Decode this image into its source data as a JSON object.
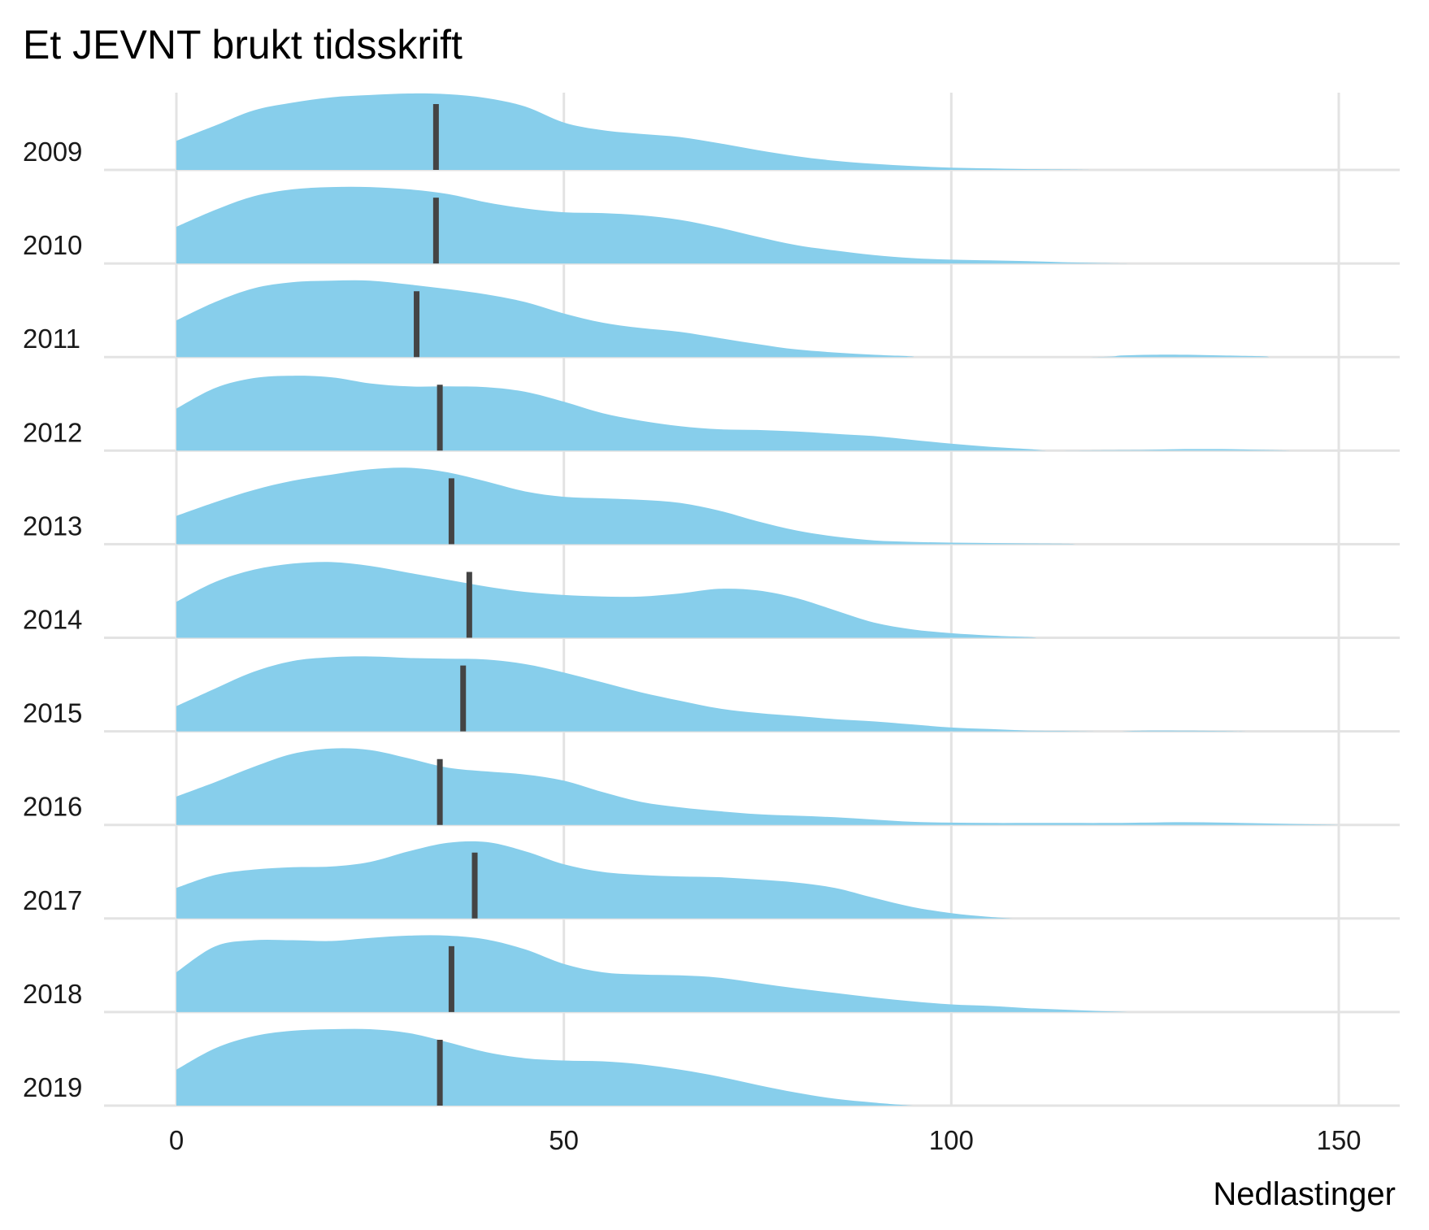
{
  "chart_data": {
    "type": "area",
    "subtype": "ridgeline",
    "title": "Et JEVNT brukt tidsskrift",
    "xlabel": "Nedlastinger",
    "ylabel": "",
    "xlim": [
      -9,
      158
    ],
    "xticks": [
      0,
      50,
      100,
      150
    ],
    "grid": true,
    "legend": "none",
    "fill_color": "#87CEEB",
    "median_color": "#444444",
    "categories": [
      "2009",
      "2010",
      "2011",
      "2012",
      "2013",
      "2014",
      "2015",
      "2016",
      "2017",
      "2018",
      "2019"
    ],
    "series": [
      {
        "year": "2009",
        "median": 33.5,
        "x": [
          0,
          5,
          10,
          15,
          20,
          25,
          30,
          35,
          40,
          45,
          50,
          55,
          60,
          65,
          70,
          75,
          80,
          85,
          90,
          95,
          100,
          105,
          110,
          115,
          118
        ],
        "density": [
          0.38,
          0.58,
          0.78,
          0.88,
          0.95,
          0.98,
          1.0,
          0.99,
          0.94,
          0.83,
          0.62,
          0.52,
          0.47,
          0.43,
          0.35,
          0.26,
          0.18,
          0.12,
          0.08,
          0.05,
          0.03,
          0.02,
          0.01,
          0.005,
          0.0
        ]
      },
      {
        "year": "2010",
        "median": 33.5,
        "x": [
          0,
          5,
          10,
          15,
          20,
          25,
          30,
          35,
          40,
          45,
          50,
          55,
          60,
          65,
          70,
          75,
          80,
          85,
          90,
          95,
          100,
          105,
          110,
          115,
          120,
          123
        ],
        "density": [
          0.48,
          0.7,
          0.88,
          0.97,
          1.0,
          1.0,
          0.97,
          0.91,
          0.8,
          0.72,
          0.67,
          0.66,
          0.63,
          0.57,
          0.47,
          0.35,
          0.24,
          0.17,
          0.11,
          0.07,
          0.05,
          0.04,
          0.03,
          0.015,
          0.005,
          0.0
        ]
      },
      {
        "year": "2011",
        "median": 31,
        "x": [
          0,
          5,
          10,
          15,
          20,
          25,
          30,
          35,
          40,
          45,
          50,
          55,
          60,
          65,
          70,
          75,
          80,
          85,
          90,
          95,
          96,
          118,
          122,
          126,
          130,
          135,
          140,
          141
        ],
        "density": [
          0.48,
          0.72,
          0.9,
          0.98,
          1.0,
          1.0,
          0.95,
          0.89,
          0.82,
          0.72,
          0.57,
          0.45,
          0.38,
          0.33,
          0.25,
          0.17,
          0.1,
          0.06,
          0.03,
          0.01,
          0.0,
          0.0,
          0.02,
          0.03,
          0.03,
          0.02,
          0.01,
          0.0
        ]
      },
      {
        "year": "2012",
        "median": 34,
        "x": [
          0,
          5,
          10,
          15,
          20,
          25,
          30,
          35,
          40,
          45,
          50,
          55,
          60,
          65,
          70,
          75,
          80,
          85,
          90,
          95,
          100,
          105,
          110,
          113,
          120,
          125,
          130,
          135,
          140,
          144
        ],
        "density": [
          0.55,
          0.82,
          0.95,
          0.98,
          0.96,
          0.88,
          0.84,
          0.84,
          0.83,
          0.77,
          0.64,
          0.49,
          0.39,
          0.32,
          0.28,
          0.27,
          0.25,
          0.22,
          0.19,
          0.14,
          0.09,
          0.05,
          0.02,
          0.0,
          0.005,
          0.01,
          0.02,
          0.02,
          0.01,
          0.0
        ]
      },
      {
        "year": "2013",
        "median": 35.5,
        "x": [
          0,
          5,
          10,
          15,
          20,
          25,
          30,
          35,
          40,
          45,
          50,
          55,
          60,
          65,
          70,
          75,
          80,
          85,
          90,
          95,
          100,
          105,
          110,
          115,
          116
        ],
        "density": [
          0.37,
          0.55,
          0.71,
          0.83,
          0.91,
          0.98,
          1.0,
          0.94,
          0.82,
          0.69,
          0.62,
          0.6,
          0.58,
          0.54,
          0.44,
          0.3,
          0.18,
          0.1,
          0.05,
          0.03,
          0.02,
          0.015,
          0.01,
          0.005,
          0.0
        ]
      },
      {
        "year": "2014",
        "median": 37.8,
        "x": [
          0,
          5,
          10,
          15,
          20,
          25,
          30,
          35,
          40,
          45,
          50,
          55,
          60,
          65,
          70,
          75,
          80,
          85,
          90,
          95,
          100,
          105,
          110,
          111
        ],
        "density": [
          0.47,
          0.73,
          0.89,
          0.97,
          0.99,
          0.94,
          0.85,
          0.76,
          0.67,
          0.6,
          0.56,
          0.54,
          0.54,
          0.58,
          0.64,
          0.62,
          0.52,
          0.36,
          0.2,
          0.11,
          0.06,
          0.03,
          0.01,
          0.0
        ]
      },
      {
        "year": "2015",
        "median": 37,
        "x": [
          0,
          5,
          10,
          15,
          20,
          25,
          30,
          35,
          40,
          45,
          50,
          55,
          60,
          65,
          70,
          75,
          80,
          85,
          90,
          95,
          100,
          105,
          110,
          115,
          119,
          122,
          125,
          130,
          135,
          138
        ],
        "density": [
          0.33,
          0.56,
          0.78,
          0.92,
          0.97,
          0.98,
          0.96,
          0.95,
          0.94,
          0.88,
          0.77,
          0.64,
          0.51,
          0.4,
          0.3,
          0.24,
          0.2,
          0.16,
          0.13,
          0.09,
          0.05,
          0.03,
          0.01,
          0.005,
          0.0,
          0.0,
          0.01,
          0.01,
          0.005,
          0.0
        ]
      },
      {
        "year": "2016",
        "median": 34,
        "x": [
          0,
          5,
          10,
          15,
          20,
          25,
          30,
          35,
          40,
          45,
          50,
          55,
          60,
          65,
          70,
          75,
          80,
          85,
          90,
          95,
          100,
          105,
          110,
          115,
          120,
          125,
          130,
          135,
          140,
          145,
          150
        ],
        "density": [
          0.37,
          0.56,
          0.76,
          0.93,
          1.0,
          0.98,
          0.87,
          0.75,
          0.7,
          0.66,
          0.58,
          0.43,
          0.3,
          0.23,
          0.18,
          0.14,
          0.12,
          0.1,
          0.07,
          0.04,
          0.03,
          0.025,
          0.025,
          0.025,
          0.025,
          0.03,
          0.035,
          0.03,
          0.02,
          0.01,
          0.0
        ]
      },
      {
        "year": "2017",
        "median": 38.5,
        "x": [
          0,
          5,
          10,
          15,
          20,
          25,
          30,
          35,
          40,
          45,
          50,
          55,
          60,
          65,
          70,
          75,
          80,
          85,
          90,
          95,
          100,
          105,
          108
        ],
        "density": [
          0.4,
          0.57,
          0.64,
          0.67,
          0.68,
          0.74,
          0.88,
          0.99,
          1.0,
          0.88,
          0.71,
          0.61,
          0.57,
          0.55,
          0.54,
          0.51,
          0.47,
          0.4,
          0.27,
          0.15,
          0.07,
          0.02,
          0.0
        ]
      },
      {
        "year": "2018",
        "median": 35.5,
        "x": [
          0,
          5,
          10,
          15,
          20,
          25,
          30,
          35,
          40,
          45,
          50,
          55,
          60,
          65,
          70,
          75,
          80,
          85,
          90,
          95,
          100,
          105,
          110,
          115,
          120,
          123
        ],
        "density": [
          0.52,
          0.86,
          0.94,
          0.94,
          0.93,
          0.97,
          1.0,
          1.0,
          0.95,
          0.82,
          0.63,
          0.52,
          0.49,
          0.48,
          0.45,
          0.38,
          0.31,
          0.25,
          0.19,
          0.14,
          0.1,
          0.08,
          0.05,
          0.03,
          0.01,
          0.0
        ]
      },
      {
        "year": "2019",
        "median": 34,
        "x": [
          0,
          5,
          10,
          15,
          20,
          25,
          30,
          35,
          40,
          45,
          50,
          55,
          60,
          65,
          70,
          75,
          80,
          85,
          90,
          95
        ],
        "density": [
          0.47,
          0.75,
          0.91,
          0.98,
          1.0,
          1.0,
          0.95,
          0.83,
          0.7,
          0.62,
          0.59,
          0.58,
          0.54,
          0.47,
          0.38,
          0.27,
          0.17,
          0.09,
          0.04,
          0.0
        ]
      }
    ]
  }
}
